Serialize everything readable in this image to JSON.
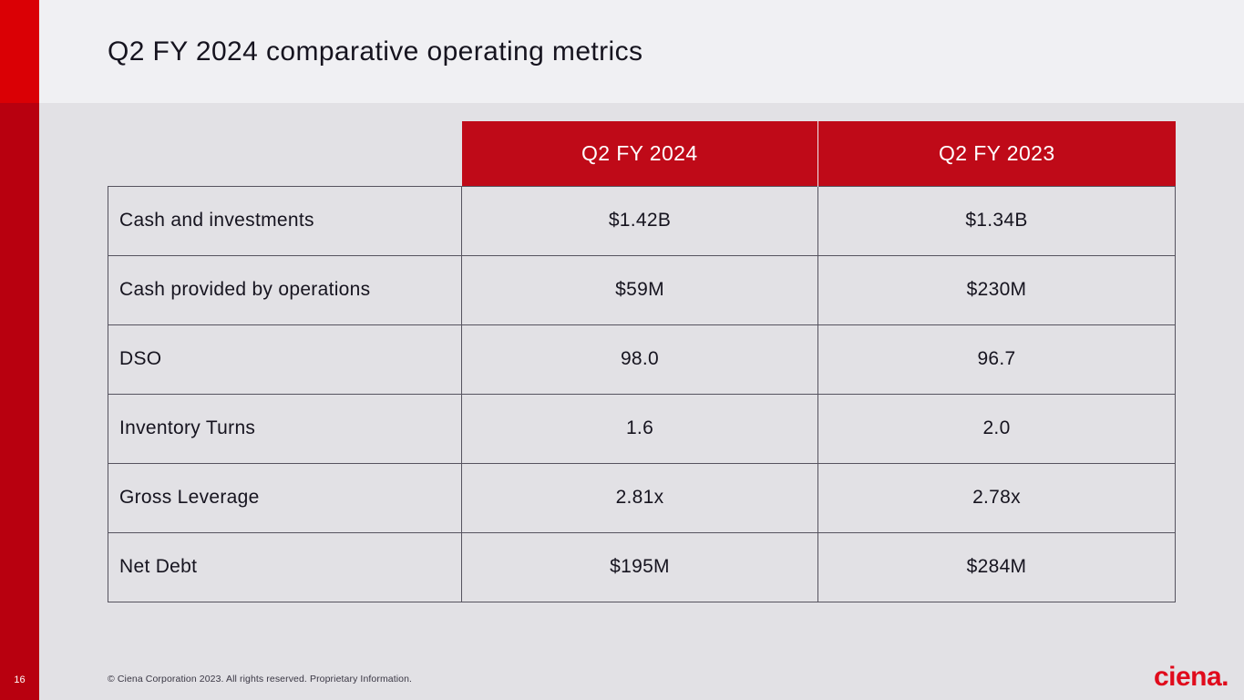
{
  "title": "Q2 FY 2024 comparative operating metrics",
  "table": {
    "columns": [
      "Q2 FY 2024",
      "Q2 FY 2023"
    ],
    "rows": [
      {
        "label": "Cash and investments",
        "values": [
          "$1.42B",
          "$1.34B"
        ]
      },
      {
        "label": "Cash provided by operations",
        "values": [
          "$59M",
          "$230M"
        ]
      },
      {
        "label": "DSO",
        "values": [
          "98.0",
          "96.7"
        ]
      },
      {
        "label": "Inventory Turns",
        "values": [
          "1.6",
          "2.0"
        ]
      },
      {
        "label": "Gross Leverage",
        "values": [
          "2.81x",
          "2.78x"
        ]
      },
      {
        "label": "Net Debt",
        "values": [
          "$195M",
          "$284M"
        ]
      }
    ]
  },
  "footer": {
    "page_number": "16",
    "copyright": "© Ciena Corporation 2023. All rights reserved. Proprietary Information.",
    "logo_text": "ciena."
  },
  "colors": {
    "accent_bright_red": "#da0005",
    "accent_dark_red": "#b8000f",
    "header_red": "#bf0a18",
    "logo_red": "#e00b1c",
    "top_band_bg": "#f0f0f3",
    "main_bg": "#e2e1e5",
    "border": "#56535f"
  }
}
